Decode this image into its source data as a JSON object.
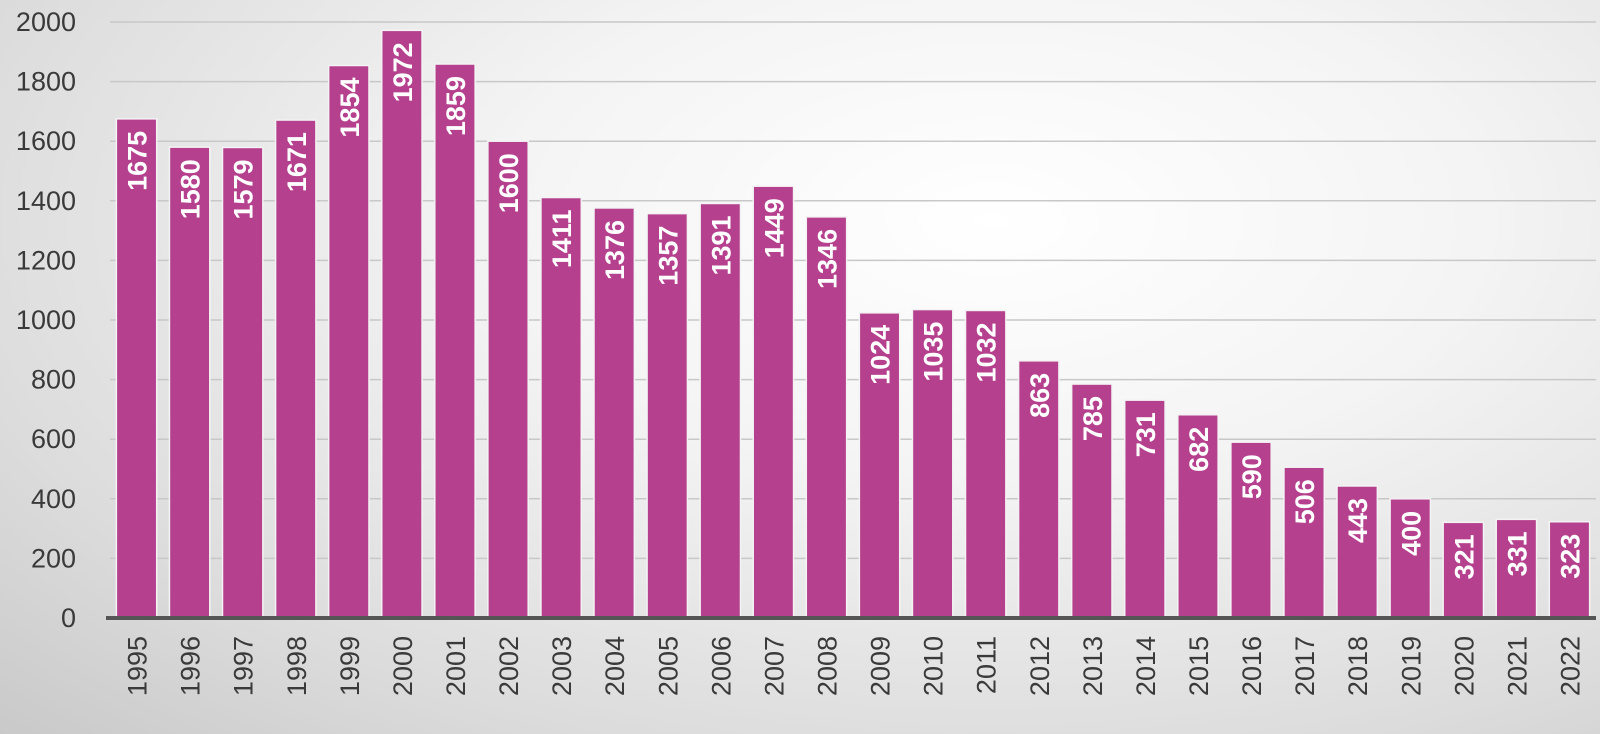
{
  "chart_data": {
    "type": "bar",
    "categories": [
      "1995",
      "1996",
      "1997",
      "1998",
      "1999",
      "2000",
      "2001",
      "2002",
      "2003",
      "2004",
      "2005",
      "2006",
      "2007",
      "2008",
      "2009",
      "2010",
      "2011",
      "2012",
      "2013",
      "2014",
      "2015",
      "2016",
      "2017",
      "2018",
      "2019",
      "2020",
      "2021",
      "2022"
    ],
    "values": [
      1675,
      1580,
      1579,
      1671,
      1854,
      1972,
      1859,
      1600,
      1411,
      1376,
      1357,
      1391,
      1449,
      1346,
      1024,
      1035,
      1032,
      863,
      785,
      731,
      682,
      590,
      506,
      443,
      400,
      321,
      331,
      323
    ],
    "title": "",
    "xlabel": "",
    "ylabel": "",
    "ylim": [
      0,
      2000
    ],
    "yticks": [
      0,
      200,
      400,
      600,
      800,
      1000,
      1200,
      1400,
      1600,
      1800,
      2000
    ],
    "grid": true,
    "data_labels": "inside-top-rotated",
    "colors": {
      "bar": "#b5408d",
      "bar_border": "#f3f3f3",
      "grid": "#c8c8c8",
      "axis": "#555555",
      "label": "#ffffff",
      "tick": "#3a3a3a"
    }
  }
}
